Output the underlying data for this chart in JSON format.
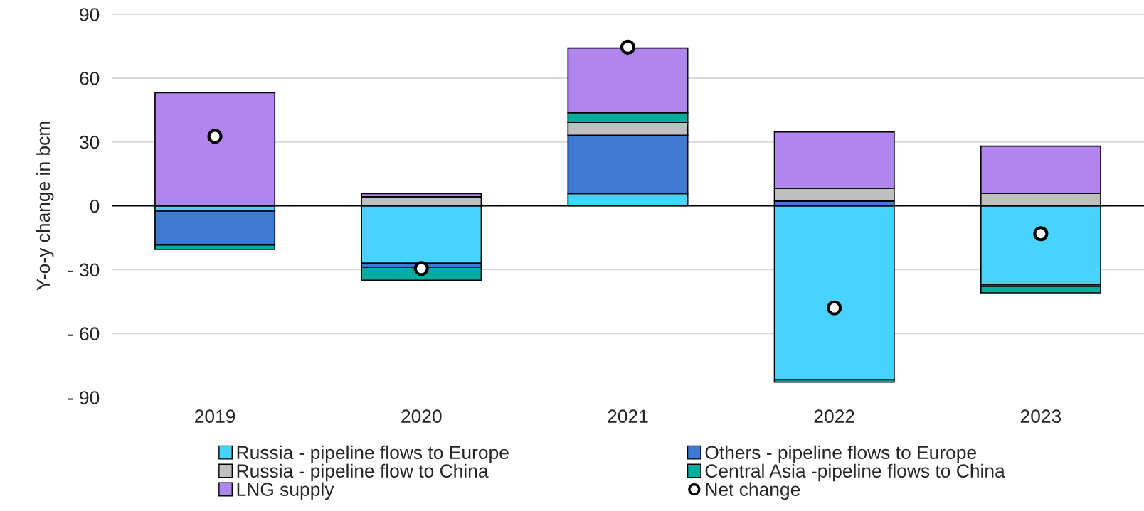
{
  "chart_data": {
    "type": "bar",
    "stacked": true,
    "ylabel": "Y-o-y change in bcm",
    "categories": [
      "2019",
      "2020",
      "2021",
      "2022",
      "2023"
    ],
    "series": [
      {
        "name": "Russia - pipeline flows to Europe",
        "color": "#47d3ff",
        "values": [
          -2.5,
          -27.0,
          5.7,
          -81.8,
          -37.1
        ]
      },
      {
        "name": "Others - pipeline flows to Europe",
        "color": "#3f79d1",
        "values": [
          -15.9,
          -1.9,
          27.4,
          2.2,
          -0.8
        ]
      },
      {
        "name": "Russia - pipeline flow to China",
        "color": "#bfbfbf",
        "values": [
          0,
          4.2,
          6.1,
          6.0,
          5.9
        ]
      },
      {
        "name": "Central Asia -pipeline flows to China",
        "color": "#00ad9f",
        "values": [
          -2.1,
          -6.1,
          4.5,
          -1.1,
          -3.0
        ]
      },
      {
        "name": "LNG supply",
        "color": "#b185ee",
        "values": [
          53.1,
          1.5,
          30.4,
          26.5,
          22.1
        ]
      },
      {
        "name": "Net change",
        "type": "scatter",
        "color": "#ffffff",
        "values": [
          32.6,
          -29.5,
          74.5,
          -48.0,
          -13.1
        ]
      }
    ],
    "ylim": [
      -90,
      90
    ],
    "yticks": [
      {
        "value": -90,
        "label": "- 90"
      },
      {
        "value": -60,
        "label": "- 60"
      },
      {
        "value": -30,
        "label": "- 30"
      },
      0,
      30,
      60,
      90
    ],
    "ref_lines": [
      {
        "axis": "y",
        "value": 0,
        "color": "#000000"
      }
    ],
    "grid": "y",
    "legend": "bottom",
    "marker": "circle"
  }
}
